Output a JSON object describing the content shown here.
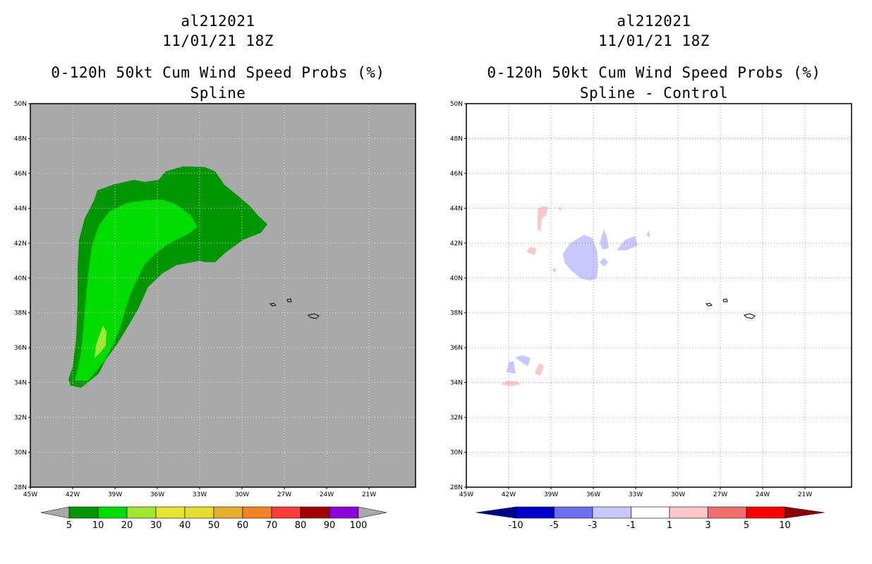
{
  "left_panel": {
    "storm_id": "al212021",
    "datetime": "11/01/21 18Z",
    "product": "0-120h 50kt Cum Wind Speed Probs (%)",
    "subtitle": "Spline",
    "background_color": "#a9a9a9",
    "lat_labels": [
      "50N",
      "48N",
      "46N",
      "44N",
      "42N",
      "40N",
      "38N",
      "36N",
      "34N",
      "32N",
      "30N",
      "28N"
    ],
    "lon_labels": [
      "45W",
      "42W",
      "39W",
      "36W",
      "33W",
      "30W",
      "27W",
      "24W",
      "21W"
    ],
    "colorbar": {
      "labels": [
        "5",
        "10",
        "20",
        "30",
        "40",
        "50",
        "60",
        "70",
        "80",
        "90",
        "100"
      ],
      "colors": [
        "#009600",
        "#00dc00",
        "#a0e632",
        "#e6e632",
        "#e6dc32",
        "#e6af2d",
        "#f08228",
        "#fa3c3c",
        "#a00000",
        "#8c00dc"
      ],
      "end_color": "#a9a9a9"
    }
  },
  "right_panel": {
    "storm_id": "al212021",
    "datetime": "11/01/21 18Z",
    "product": "0-120h 50kt Cum Wind Speed Probs (%)",
    "subtitle": "Spline - Control",
    "background_color": "#ffffff",
    "lat_labels": [
      "50N",
      "48N",
      "46N",
      "44N",
      "42N",
      "40N",
      "38N",
      "36N",
      "34N",
      "32N",
      "30N",
      "28N"
    ],
    "lon_labels": [
      "45W",
      "42W",
      "39W",
      "36W",
      "33W",
      "30W",
      "27W",
      "24W",
      "21W"
    ],
    "colorbar": {
      "labels": [
        "-10",
        "-5",
        "-3",
        "-1",
        "1",
        "3",
        "5",
        "10"
      ],
      "colors": [
        "#0000c8",
        "#6e6ef0",
        "#c8c8ff",
        "#ffffff",
        "#ffc8c8",
        "#f06e6e",
        "#fa0000"
      ],
      "end_low": "#00008c",
      "end_high": "#8c0000"
    }
  }
}
